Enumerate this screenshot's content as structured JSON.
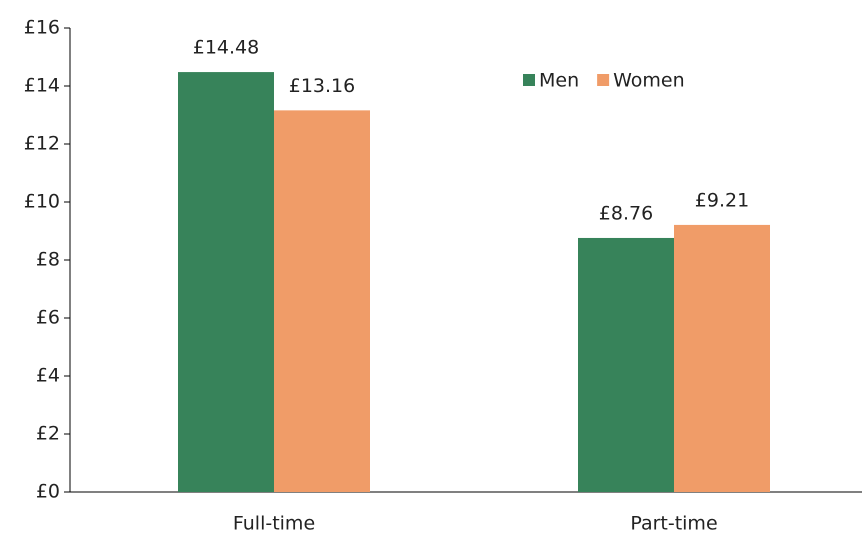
{
  "chart_data": {
    "type": "bar",
    "categories": [
      "Full-time",
      "Part-time"
    ],
    "series": [
      {
        "name": "Men",
        "color": "#37835a",
        "values": [
          14.48,
          8.76
        ],
        "value_labels": [
          "£14.48",
          "£8.76"
        ]
      },
      {
        "name": "Women",
        "color": "#f09c68",
        "values": [
          13.16,
          9.21
        ],
        "value_labels": [
          "£13.16",
          "£9.21"
        ]
      }
    ],
    "ylim": [
      0,
      16
    ],
    "yticks": [
      {
        "value": 0,
        "label": "£0"
      },
      {
        "value": 2,
        "label": "£2"
      },
      {
        "value": 4,
        "label": "£4"
      },
      {
        "value": 6,
        "label": "£6"
      },
      {
        "value": 8,
        "label": "£8"
      },
      {
        "value": 10,
        "label": "£10"
      },
      {
        "value": 12,
        "label": "£12"
      },
      {
        "value": 14,
        "label": "£14"
      },
      {
        "value": 16,
        "label": "£16"
      }
    ],
    "grid": false,
    "legend": "top-right"
  }
}
